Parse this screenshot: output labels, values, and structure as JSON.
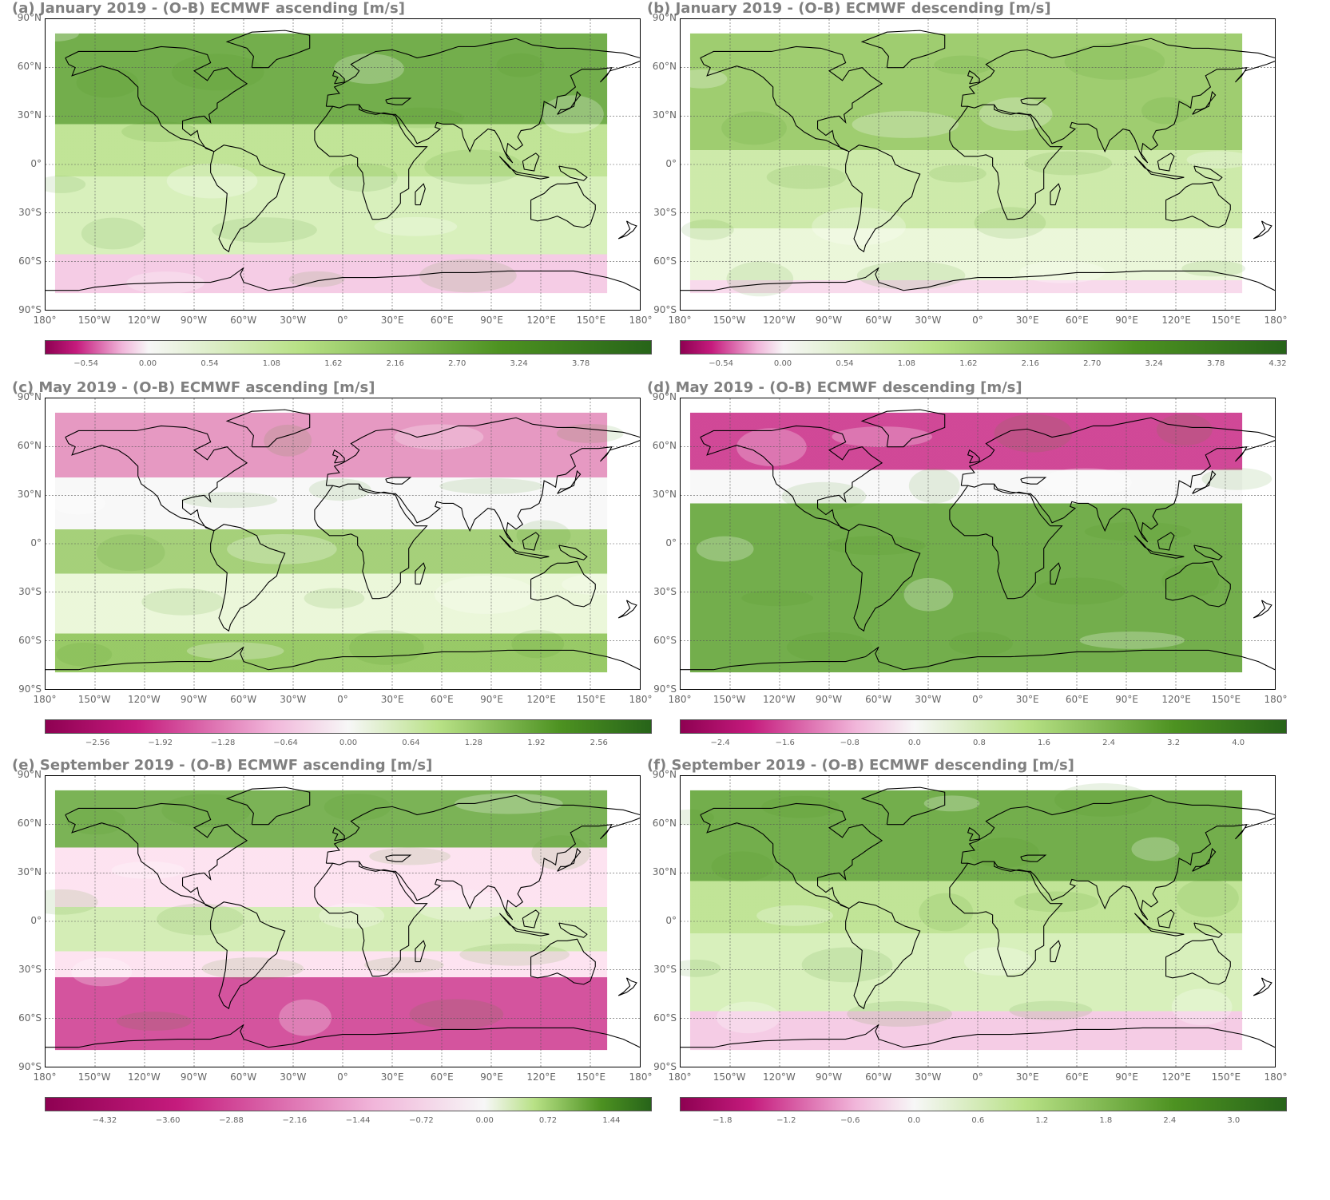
{
  "lat_labels": [
    "90°N",
    "60°N",
    "30°N",
    "0°",
    "30°S",
    "60°S",
    "90°S"
  ],
  "lon_labels": [
    "180°",
    "150°W",
    "120°W",
    "90°W",
    "60°W",
    "30°W",
    "0°",
    "30°E",
    "60°E",
    "90°E",
    "120°E",
    "150°E",
    "180°"
  ],
  "colors": {
    "pink": "#c51b7d",
    "green": "#4d9221",
    "white": "#f7f7f7",
    "dark_green": "#276419",
    "dark_pink": "#8e0152"
  },
  "panels": [
    {
      "id": "a",
      "title": "(a) January 2019 - (O-B) ECMWF ascending [m/s]",
      "pattern": "green-dominant-pink-south",
      "colorbar_ticks": [
        "−0.54",
        "0.00",
        "0.54",
        "1.08",
        "1.62",
        "2.16",
        "2.70",
        "3.24",
        "3.78"
      ],
      "colorbar_range": [
        -0.9,
        4.4
      ]
    },
    {
      "id": "b",
      "title": "(b) January 2019 - (O-B) ECMWF descending [m/s]",
      "pattern": "green-light",
      "colorbar_ticks": [
        "−0.54",
        "0.00",
        "0.54",
        "1.08",
        "1.62",
        "2.16",
        "2.70",
        "3.24",
        "3.78",
        "4.32"
      ],
      "colorbar_range": [
        -0.9,
        4.4
      ]
    },
    {
      "id": "c",
      "title": "(c) May 2019 - (O-B) ECMWF ascending [m/s]",
      "pattern": "pink-north-green-mid",
      "colorbar_ticks": [
        "−2.56",
        "−1.92",
        "−1.28",
        "−0.64",
        "0.00",
        "0.64",
        "1.28",
        "1.92",
        "2.56"
      ],
      "colorbar_range": [
        -3.1,
        3.1
      ]
    },
    {
      "id": "d",
      "title": "(d) May 2019 - (O-B) ECMWF descending [m/s]",
      "pattern": "pink-north-green-strong",
      "colorbar_ticks": [
        "−2.4",
        "−1.6",
        "−0.8",
        "0.0",
        "0.8",
        "1.6",
        "2.4",
        "3.2",
        "4.0"
      ],
      "colorbar_range": [
        -2.9,
        4.6
      ]
    },
    {
      "id": "e",
      "title": "(e) September 2019 - (O-B) ECMWF ascending [m/s]",
      "pattern": "pink-south-strong",
      "colorbar_ticks": [
        "−4.32",
        "−3.60",
        "−2.88",
        "−2.16",
        "−1.44",
        "−0.72",
        "0.00",
        "0.72",
        "1.44"
      ],
      "colorbar_range": [
        -5.0,
        1.9
      ]
    },
    {
      "id": "f",
      "title": "(f) September 2019 - (O-B) ECMWF descending [m/s]",
      "pattern": "green-dominant-pink-south",
      "colorbar_ticks": [
        "−1.8",
        "−1.2",
        "−0.6",
        "0.0",
        "0.6",
        "1.2",
        "1.8",
        "2.4",
        "3.0"
      ],
      "colorbar_range": [
        -2.2,
        3.5
      ]
    }
  ]
}
